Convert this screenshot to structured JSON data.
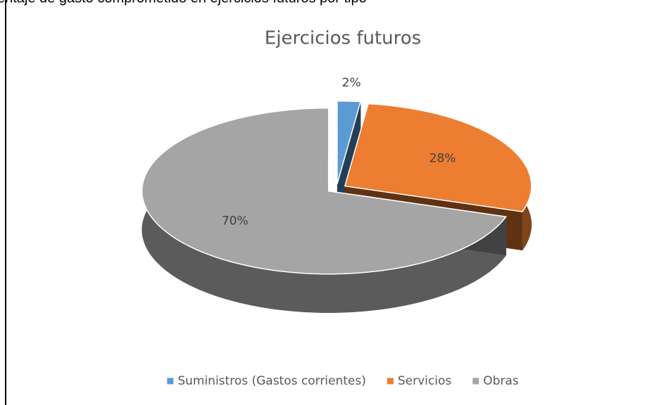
{
  "header_text": "entaje de gasto comprometido en ejercicios futuros por tipo",
  "chart_data": {
    "type": "pie",
    "title": "Ejercicios futuros",
    "categories": [
      "Suministros (Gastos corrientes)",
      "Servicios",
      "Obras"
    ],
    "values": [
      2,
      28,
      70
    ],
    "value_labels": [
      "2%",
      "28%",
      "70%"
    ],
    "colors": [
      "#5b9bd5",
      "#ed7d31",
      "#a5a5a5"
    ],
    "legend": "bottom"
  }
}
